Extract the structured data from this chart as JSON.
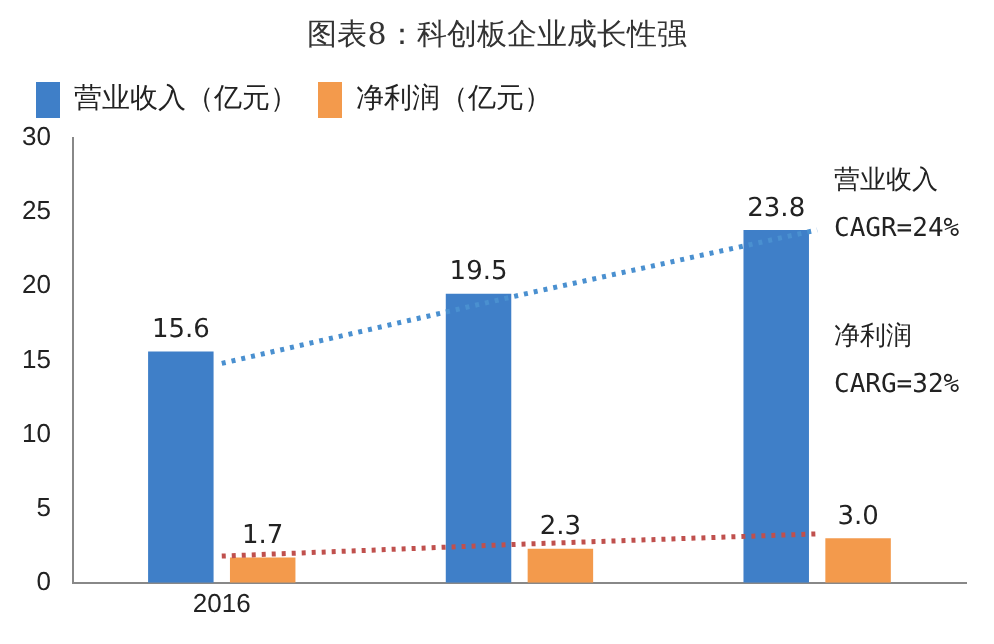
{
  "chart_data": {
    "type": "bar",
    "title": "图表8：科创板企业成长性强",
    "categories": [
      "2016",
      null,
      null
    ],
    "series": [
      {
        "name": "营业收入（亿元）",
        "color": "#3f7fc8",
        "values": [
          15.6,
          19.5,
          23.8
        ],
        "value_labels": [
          "15.6",
          "19.5",
          "23.8"
        ]
      },
      {
        "name": "净利润（亿元）",
        "color": "#f39a4c",
        "values": [
          1.7,
          2.3,
          3.0
        ],
        "value_labels": [
          "1.7",
          "2.3",
          "3.0"
        ]
      },
      {
        "type": "line",
        "color": "#4a90d0",
        "values": [
          14.8,
          19.4,
          23.8
        ],
        "line_style": "dotted",
        "marker": "none"
      },
      {
        "type": "line",
        "color": "#c0504d",
        "values": [
          1.8,
          2.6,
          3.3
        ],
        "line_style": "dotted",
        "marker": "none"
      }
    ],
    "ylim": [
      0,
      30
    ],
    "yticks": [
      0,
      5,
      10,
      15,
      20,
      25,
      30
    ],
    "grid": false,
    "legend": "top",
    "annotations": [
      "营业收入 CAGR=24%",
      "净利润 CARG=32%"
    ]
  }
}
